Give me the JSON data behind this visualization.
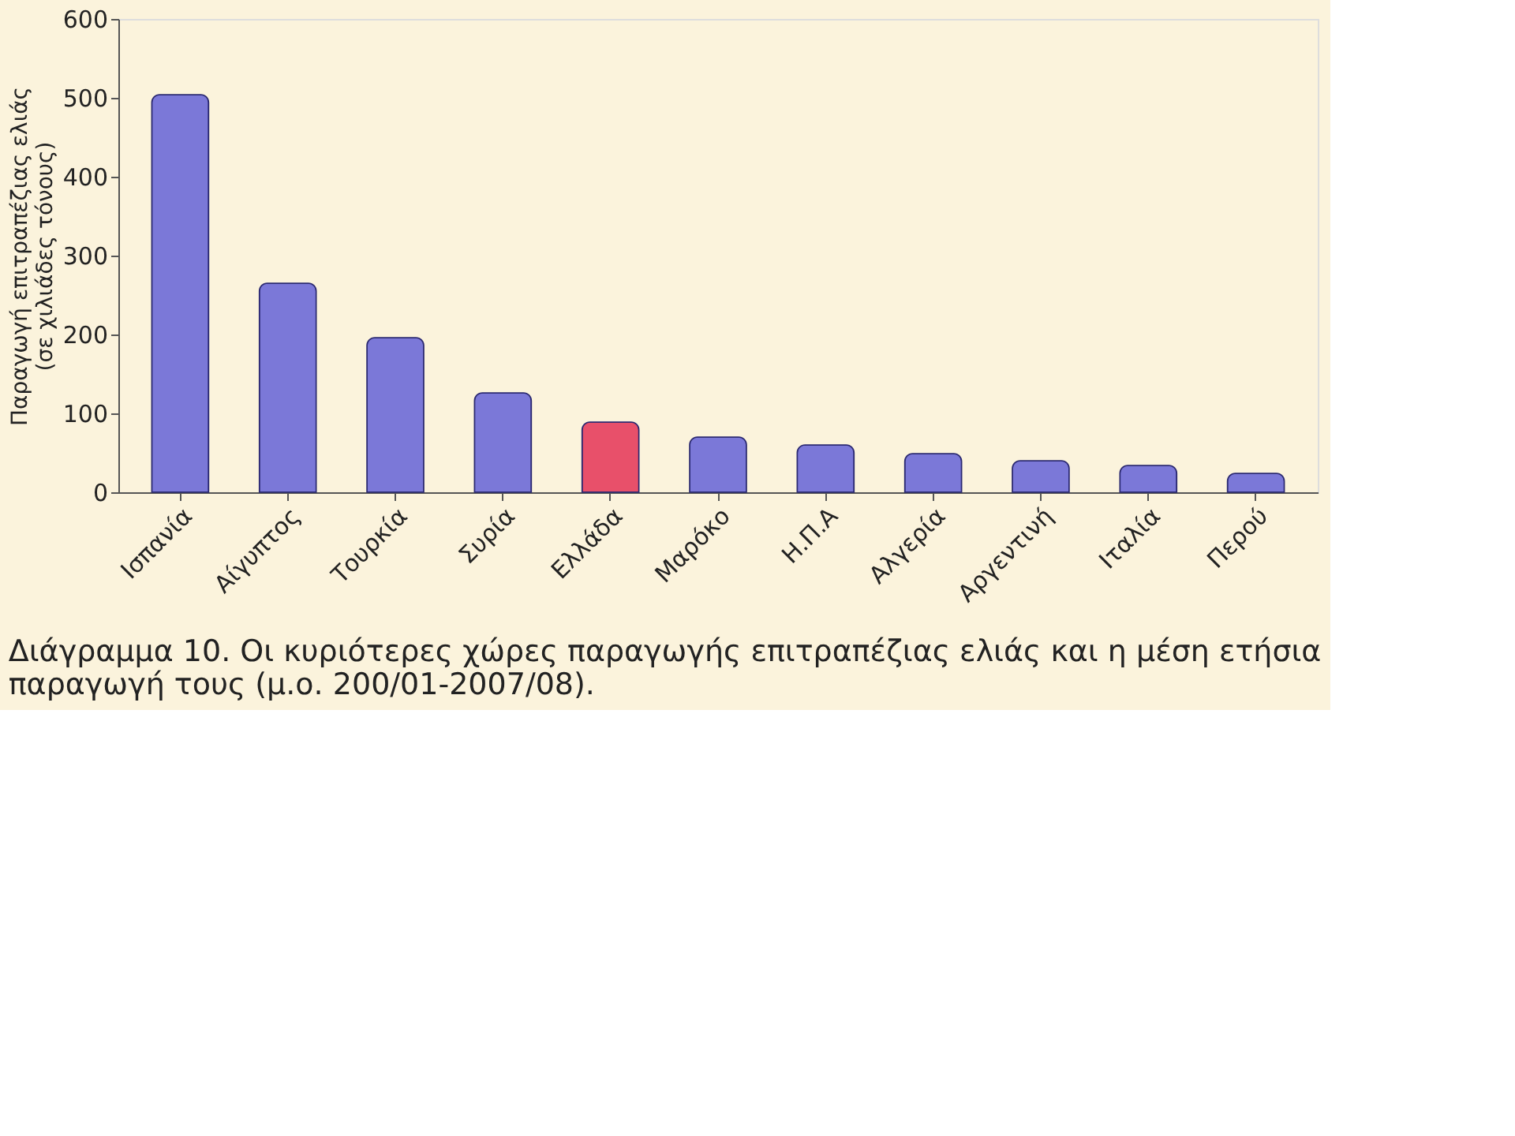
{
  "chart_data": {
    "type": "bar",
    "ylabel": [
      "Παραγωγή επιτραπέζιας ελιάς",
      "(σε χιλιάδες τόνους)"
    ],
    "categories": [
      "Ισπανία",
      "Αίγυπτος",
      "Τουρκία",
      "Συρία",
      "Ελλάδα",
      "Μαρόκο",
      "Η.Π.Α",
      "Αλγερία",
      "Αργεντινή",
      "Ιταλία",
      "Περού"
    ],
    "values": [
      504,
      265,
      196,
      126,
      89,
      70,
      60,
      49,
      40,
      34,
      24
    ],
    "colors": [
      "#7b78d8",
      "#7b78d8",
      "#7b78d8",
      "#7b78d8",
      "#e8506a",
      "#7b78d8",
      "#7b78d8",
      "#7b78d8",
      "#7b78d8",
      "#7b78d8",
      "#7b78d8"
    ],
    "ylim": [
      0,
      600
    ],
    "yticks": [
      0,
      100,
      200,
      300,
      400,
      500,
      600
    ],
    "grid": false,
    "annotations": [
      "Διάγραμμα 10. Οι κυριότερες χώρες παραγωγής επιτραπέζιας ελιάς και η μέση ετήσια παραγωγή τους (μ.ο. 200/01-2007/08)."
    ]
  }
}
